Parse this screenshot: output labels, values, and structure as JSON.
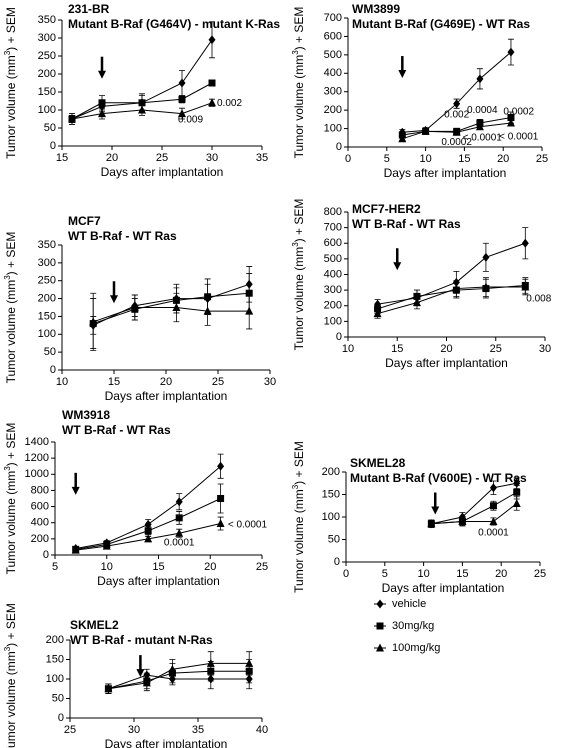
{
  "legend": [
    {
      "name": "vehicle",
      "marker": "diamond"
    },
    {
      "name": "30mg/kg",
      "marker": "square"
    },
    {
      "name": "100mg/kg",
      "marker": "triangle"
    }
  ],
  "chart_data": [
    {
      "type": "line",
      "title": "231-BR",
      "subtitle": "Mutant B-Raf (G464V) - mutant K-Ras",
      "xlabel": "Days after implantation",
      "ylabel": {
        "text": "Tumor volume (mm",
        "sup": "3",
        "tail": ") + SEM"
      },
      "x": [
        16,
        19,
        23,
        27,
        30
      ],
      "xlim": [
        15,
        35
      ],
      "xticks": [
        15,
        20,
        25,
        30,
        35
      ],
      "ylim": [
        0,
        350
      ],
      "yticks": [
        0,
        50,
        100,
        150,
        200,
        250,
        300,
        350
      ],
      "series": [
        {
          "marker": "diamond",
          "color": "#000000",
          "values": [
            75,
            110,
            120,
            175,
            295
          ],
          "errors": [
            15,
            15,
            20,
            35,
            50
          ]
        },
        {
          "marker": "square",
          "color": "#000000",
          "values": [
            75,
            120,
            120,
            130,
            175
          ],
          "errors": [
            15,
            20,
            25,
            10,
            8
          ]
        },
        {
          "marker": "triangle",
          "color": "#000000",
          "values": [
            75,
            90,
            100,
            90,
            120
          ],
          "errors": [
            10,
            15,
            15,
            15,
            10
          ]
        }
      ],
      "annotations": [
        "0.002",
        "0.009"
      ]
    },
    {
      "type": "line",
      "title": "WM3899",
      "subtitle": "Mutant B-Raf (G469E) - WT Ras",
      "xlabel": "Days after implantation",
      "ylabel": {
        "text": "Tumor volume (mm",
        "sup": "3",
        "tail": ") + SEM"
      },
      "x": [
        7,
        10,
        14,
        17,
        21
      ],
      "xlim": [
        0,
        25
      ],
      "xticks": [
        0,
        5,
        10,
        15,
        20,
        25
      ],
      "ylim": [
        0,
        700
      ],
      "yticks": [
        0,
        100,
        200,
        300,
        400,
        500,
        600,
        700
      ],
      "series": [
        {
          "marker": "diamond",
          "color": "#000000",
          "values": [
            80,
            90,
            235,
            370,
            515
          ],
          "errors": [
            15,
            15,
            25,
            55,
            70
          ]
        },
        {
          "marker": "square",
          "color": "#000000",
          "values": [
            65,
            85,
            85,
            130,
            160
          ],
          "errors": [
            10,
            10,
            15,
            20,
            30
          ]
        },
        {
          "marker": "triangle",
          "color": "#000000",
          "values": [
            45,
            85,
            80,
            110,
            130
          ],
          "errors": [
            10,
            10,
            10,
            15,
            15
          ]
        }
      ],
      "annotations": [
        "0.002",
        "0.0004",
        "0.0002",
        "0.0002",
        "< 0.0001",
        "< 0.0001"
      ]
    },
    {
      "type": "line",
      "title": "MCF7",
      "subtitle": "WT B-Raf - WT Ras",
      "xlabel": "Days after implantation",
      "ylabel": {
        "text": "Tumor volume (mm",
        "sup": "3",
        "tail": ") + SEM"
      },
      "x": [
        13,
        17,
        21,
        24,
        28
      ],
      "xlim": [
        10,
        30
      ],
      "xticks": [
        10,
        15,
        20,
        25,
        30
      ],
      "ylim": [
        0,
        350
      ],
      "yticks": [
        0,
        50,
        100,
        150,
        200,
        250,
        300,
        350
      ],
      "series": [
        {
          "marker": "diamond",
          "color": "#000000",
          "values": [
            125,
            180,
            200,
            200,
            240
          ],
          "errors": [
            25,
            30,
            40,
            40,
            50
          ]
        },
        {
          "marker": "square",
          "color": "#000000",
          "values": [
            130,
            170,
            195,
            205,
            215
          ],
          "errors": [
            70,
            30,
            35,
            50,
            55
          ]
        },
        {
          "marker": "triangle",
          "color": "#000000",
          "values": [
            135,
            175,
            175,
            165,
            165
          ],
          "errors": [
            80,
            35,
            40,
            40,
            50
          ]
        }
      ],
      "annotations": []
    },
    {
      "type": "line",
      "title": "MCF7-HER2",
      "subtitle": "WT B-Raf - WT Ras",
      "xlabel": "Days after implantation",
      "ylabel": {
        "text": "Tumor volume (mm",
        "sup": "3",
        "tail": ") + SEM"
      },
      "x": [
        13,
        17,
        21,
        24,
        28
      ],
      "xlim": [
        10,
        30
      ],
      "xticks": [
        10,
        15,
        20,
        25,
        30
      ],
      "ylim": [
        0,
        800
      ],
      "yticks": [
        0,
        100,
        200,
        300,
        400,
        500,
        600,
        700,
        800
      ],
      "series": [
        {
          "marker": "diamond",
          "color": "#000000",
          "values": [
            210,
            250,
            350,
            510,
            600
          ],
          "errors": [
            30,
            50,
            70,
            90,
            100
          ]
        },
        {
          "marker": "square",
          "color": "#000000",
          "values": [
            180,
            260,
            300,
            310,
            330
          ],
          "errors": [
            30,
            40,
            50,
            60,
            50
          ]
        },
        {
          "marker": "triangle",
          "color": "#000000",
          "values": [
            150,
            220,
            310,
            320,
            320
          ],
          "errors": [
            30,
            40,
            50,
            60,
            50
          ]
        }
      ],
      "annotations": [
        "0.008"
      ]
    },
    {
      "type": "line",
      "title": "WM3918",
      "subtitle": "WT B-Raf - WT Ras",
      "xlabel": "Days after implantation",
      "ylabel": {
        "text": "Tumor volume (mm",
        "sup": "3",
        "tail": ") + SEM"
      },
      "x": [
        7,
        10,
        14,
        17,
        21
      ],
      "xlim": [
        5,
        25
      ],
      "xticks": [
        5,
        10,
        15,
        20,
        25
      ],
      "ylim": [
        0,
        1400
      ],
      "yticks": [
        0,
        200,
        400,
        600,
        800,
        1000,
        1200,
        1400
      ],
      "series": [
        {
          "marker": "diamond",
          "color": "#000000",
          "values": [
            80,
            150,
            380,
            660,
            1100
          ],
          "errors": [
            20,
            30,
            60,
            100,
            150
          ]
        },
        {
          "marker": "square",
          "color": "#000000",
          "values": [
            70,
            130,
            300,
            460,
            700
          ],
          "errors": [
            20,
            30,
            50,
            80,
            180
          ]
        },
        {
          "marker": "triangle",
          "color": "#000000",
          "values": [
            60,
            110,
            200,
            270,
            390
          ],
          "errors": [
            15,
            20,
            30,
            50,
            80
          ]
        }
      ],
      "annotations": [
        "0.0001",
        "< 0.0001"
      ]
    },
    {
      "type": "line",
      "title": "SKMEL28",
      "subtitle": "Mutant B-Raf (V600E) - WT Ras",
      "xlabel": "Days after implantation",
      "ylabel": {
        "text": "Tumor volume (mm",
        "sup": "3",
        "tail": ") + SEM"
      },
      "x": [
        11,
        15,
        19,
        22
      ],
      "xlim": [
        0,
        25
      ],
      "xticks": [
        0,
        5,
        10,
        15,
        20,
        25
      ],
      "ylim": [
        0,
        200
      ],
      "yticks": [
        0,
        50,
        100,
        150,
        200
      ],
      "series": [
        {
          "marker": "diamond",
          "color": "#000000",
          "values": [
            85,
            100,
            165,
            175
          ],
          "errors": [
            8,
            10,
            15,
            12
          ]
        },
        {
          "marker": "square",
          "color": "#000000",
          "values": [
            85,
            90,
            125,
            155
          ],
          "errors": [
            8,
            10,
            10,
            15
          ]
        },
        {
          "marker": "triangle",
          "color": "#000000",
          "values": [
            85,
            90,
            90,
            130
          ],
          "errors": [
            8,
            8,
            8,
            15
          ]
        }
      ],
      "annotations": [
        "0.0001"
      ]
    },
    {
      "type": "line",
      "title": "SKMEL2",
      "subtitle": "WT B-Raf - mutant N-Ras",
      "xlabel": "Days after implantation",
      "ylabel": {
        "text": "Tumor volume (mm",
        "sup": "3",
        "tail": ") + SEM"
      },
      "x": [
        28,
        31,
        33,
        36,
        39
      ],
      "xlim": [
        25,
        40
      ],
      "xticks": [
        25,
        30,
        35,
        40
      ],
      "ylim": [
        0,
        200
      ],
      "yticks": [
        0,
        50,
        100,
        150,
        200
      ],
      "series": [
        {
          "marker": "diamond",
          "color": "#000000",
          "values": [
            75,
            110,
            100,
            100,
            100
          ],
          "errors": [
            12,
            15,
            15,
            25,
            25
          ]
        },
        {
          "marker": "square",
          "color": "#000000",
          "values": [
            75,
            95,
            115,
            120,
            120
          ],
          "errors": [
            12,
            20,
            25,
            25,
            30
          ]
        },
        {
          "marker": "triangle",
          "color": "#000000",
          "values": [
            75,
            90,
            125,
            140,
            140
          ],
          "errors": [
            12,
            20,
            25,
            30,
            30
          ]
        }
      ],
      "annotations": []
    }
  ]
}
